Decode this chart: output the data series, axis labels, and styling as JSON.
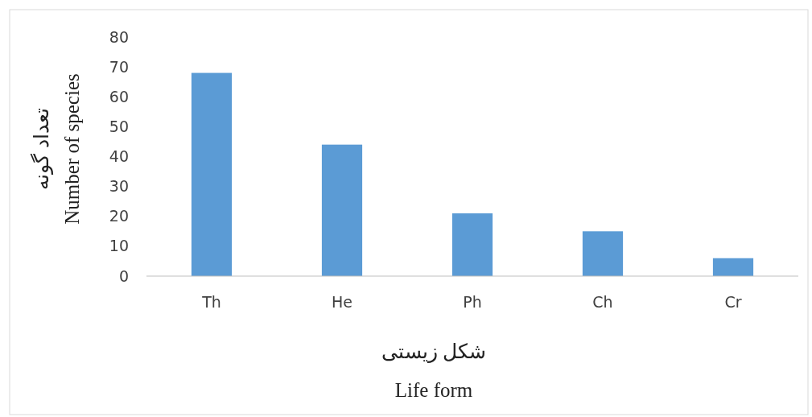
{
  "chart_data": {
    "type": "bar",
    "categories": [
      "Th",
      "He",
      "Ph",
      "Ch",
      "Cr"
    ],
    "values": [
      68,
      44,
      21,
      15,
      6
    ],
    "color": "#5b9bd5",
    "ylim": [
      0,
      80
    ],
    "yticks": [
      0,
      10,
      20,
      30,
      40,
      50,
      60,
      70,
      80
    ],
    "ylabel": "تعداد گونه\nNumber of species",
    "xlabel": "شکل زیستی\nLife form",
    "grid": false
  }
}
